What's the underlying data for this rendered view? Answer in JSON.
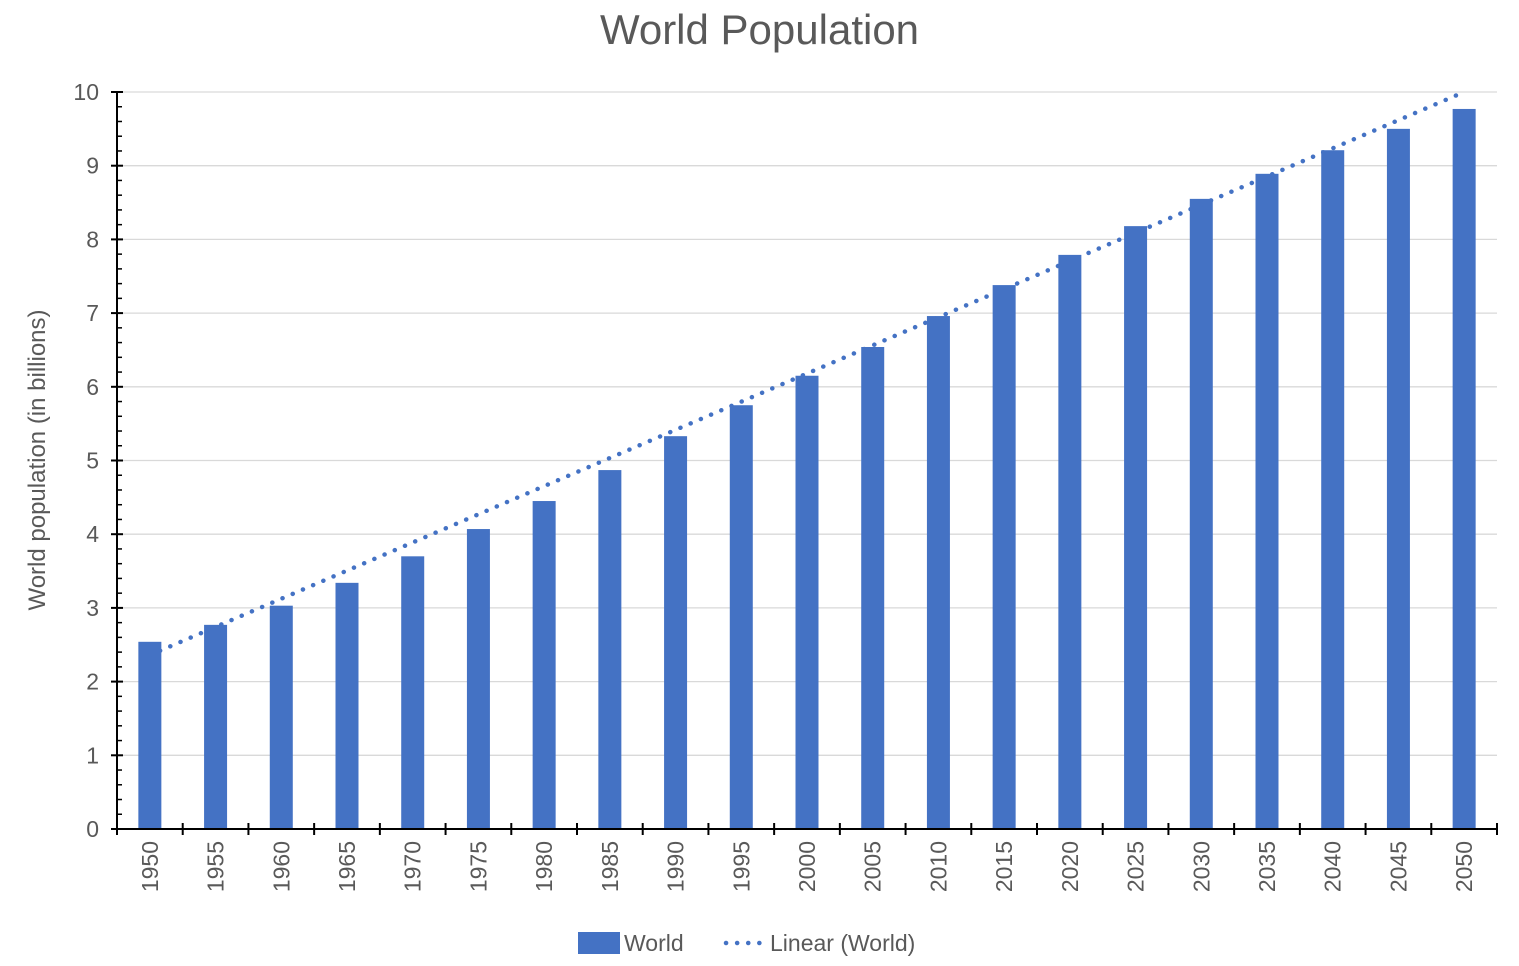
{
  "chart_data": {
    "type": "bar",
    "title": "World Population",
    "ylabel": "World population (in billions)",
    "xlabel": "",
    "ylim": [
      0,
      10
    ],
    "yticks": [
      0,
      1,
      2,
      3,
      4,
      5,
      6,
      7,
      8,
      9,
      10
    ],
    "grid": true,
    "legend_position": "bottom",
    "categories": [
      "1950",
      "1955",
      "1960",
      "1965",
      "1970",
      "1975",
      "1980",
      "1985",
      "1990",
      "1995",
      "2000",
      "2005",
      "2010",
      "2015",
      "2020",
      "2025",
      "2030",
      "2035",
      "2040",
      "2045",
      "2050"
    ],
    "series": [
      {
        "name": "World",
        "color": "#4472c4",
        "values": [
          2.54,
          2.77,
          3.03,
          3.34,
          3.7,
          4.07,
          4.45,
          4.87,
          5.33,
          5.75,
          6.15,
          6.54,
          6.96,
          7.38,
          7.79,
          8.18,
          8.55,
          8.89,
          9.21,
          9.5,
          9.77
        ]
      }
    ],
    "trendline": {
      "name": "Linear (World)",
      "type": "linear",
      "style": "dotted",
      "color": "#4472c4",
      "start_value": 2.36,
      "end_value": 10.0
    },
    "legend": [
      {
        "label": "World",
        "kind": "bar-swatch"
      },
      {
        "label": "Linear (World)",
        "kind": "dotted-line"
      }
    ]
  }
}
